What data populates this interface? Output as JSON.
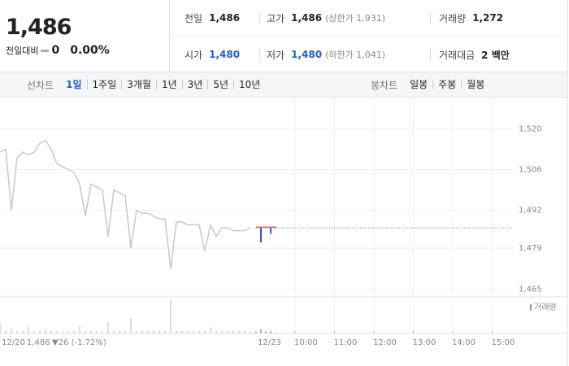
{
  "quote": {
    "price": "1,486",
    "change_label": "전일대비",
    "change": "0",
    "change_rate": "0.00%"
  },
  "stats": [
    [
      {
        "label": "전일",
        "value": "1,486"
      },
      {
        "label": "고가",
        "value": "1,486",
        "note": "(상한가 1,931)"
      },
      {
        "label": "거래량",
        "value": "1,272"
      }
    ],
    [
      {
        "label": "시가",
        "value": "1,480"
      },
      {
        "label": "저가",
        "value": "1,480",
        "note": "(하한가 1,041)"
      },
      {
        "label": "거래대금",
        "value": "2 백만"
      }
    ]
  ],
  "line_tabs": {
    "label": "선차트",
    "items": [
      "1일",
      "1주일",
      "3개월",
      "1년",
      "3년",
      "5년",
      "10년"
    ]
  },
  "candle_tabs": {
    "label": "봉차트",
    "items": [
      "일봉",
      "주봉",
      "월봉"
    ]
  },
  "chart_data": {
    "type": "line",
    "ylim": [
      1462,
      1531
    ],
    "yticks": [
      {
        "value": 1520,
        "label": "1,520"
      },
      {
        "value": 1506,
        "label": "1,506"
      },
      {
        "value": 1492,
        "label": "1,492"
      },
      {
        "value": 1479,
        "label": "1,479"
      },
      {
        "value": 1465,
        "label": "1,465"
      }
    ],
    "x_ticks": [
      "12/20",
      "12/23",
      "10:00",
      "11:00",
      "12:00",
      "13:00",
      "14:00",
      "15:00"
    ],
    "reference": 1486,
    "series": [
      {
        "color": "#c8c8c8",
        "values": [
          1512,
          1513,
          1492,
          1510,
          1512,
          1511,
          1512,
          1515,
          1516,
          1513,
          1508,
          1507,
          1506,
          1505,
          1501,
          1490,
          1501,
          1500,
          1499,
          1483,
          1499,
          1498,
          1497,
          1479,
          1492,
          1491,
          1491,
          1490,
          1489,
          1489,
          1472,
          1488,
          1488,
          1487,
          1487,
          1487,
          1478,
          1487,
          1483,
          1486,
          1486,
          1485,
          1485,
          1485,
          1486
        ],
        "volume": [
          1200,
          300,
          600,
          300,
          300,
          800,
          300,
          300,
          500,
          300,
          300,
          300,
          300,
          300,
          900,
          300,
          300,
          300,
          300,
          1400,
          300,
          300,
          300,
          1800,
          300,
          300,
          300,
          300,
          300,
          300,
          4000,
          300,
          300,
          300,
          300,
          300,
          300,
          700,
          300,
          300,
          300,
          300,
          300,
          300,
          300
        ]
      },
      {
        "color": "#2a5cd6",
        "values": [
          1486,
          1481,
          1486,
          1484,
          1486
        ],
        "volume": [
          150,
          500,
          250,
          272,
          100
        ]
      }
    ],
    "volume_label": "거래량",
    "volume_color": "#9b8fd0",
    "prev_close": "1,486",
    "prev_change": "▼26 (-1.72%)"
  }
}
